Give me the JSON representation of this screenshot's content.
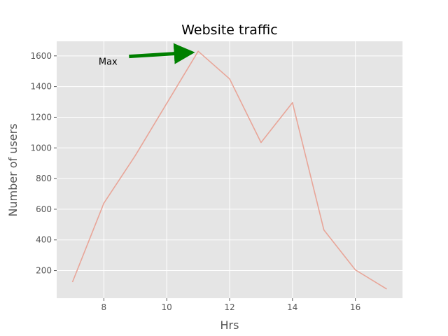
{
  "chart_data": {
    "type": "line",
    "title": "Website traffic",
    "xlabel": "Hrs",
    "ylabel": "Number of users",
    "x": [
      7,
      8,
      9,
      10,
      11,
      12,
      13,
      14,
      15,
      16,
      17
    ],
    "series": [
      {
        "values": [
          125,
          640,
          950,
          1290,
          1630,
          1450,
          1035,
          1295,
          465,
          205,
          80
        ]
      }
    ],
    "xlim": [
      6.5,
      17.5
    ],
    "ylim": [
      20,
      1695
    ],
    "xticks": [
      8,
      10,
      12,
      14,
      16
    ],
    "yticks": [
      200,
      400,
      600,
      800,
      1000,
      1200,
      1400,
      1600
    ],
    "grid": true,
    "annotation": {
      "text": "Max",
      "target": [
        11,
        1630
      ],
      "text_anchor_data": [
        8.4,
        1560
      ]
    },
    "colors": {
      "line": "#E8A598",
      "plot_background": "#E5E5E5",
      "grid": "#FFFFFF",
      "arrow": "#008000"
    }
  }
}
